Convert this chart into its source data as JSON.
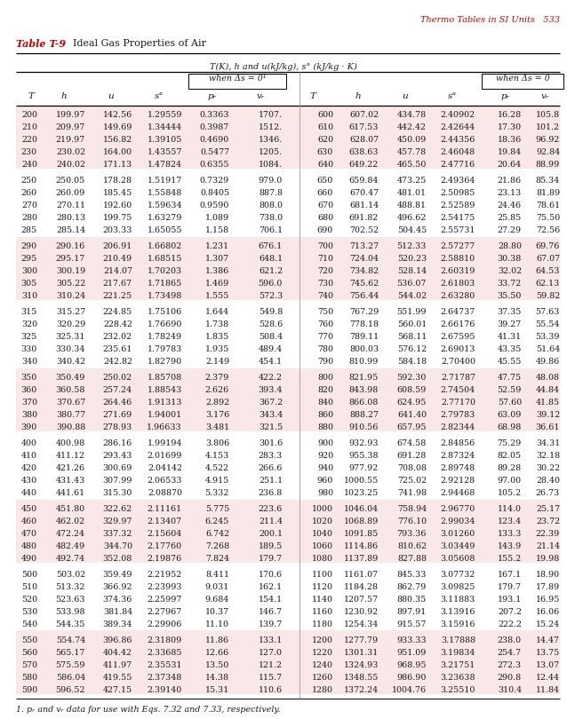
{
  "page_header": "Thermo Tables in SI Units   533",
  "table_label": "Table T-9",
  "table_title": "Ideal Gas Properties of Air",
  "subtitle1": "T(K), h and u(kJ/kg), s° (kJ/kg · K)",
  "when_ds_left": "when Δs = 0¹",
  "when_ds_right": "when Δs = 0",
  "footnote": "1. pᵣ and vᵣ data for use with Eqs. 7.32 and 7.33, respectively.",
  "data": [
    [
      200,
      199.97,
      142.56,
      1.29559,
      0.3363,
      1707,
      600,
      607.02,
      434.78,
      2.40902,
      16.28,
      105.8
    ],
    [
      210,
      209.97,
      149.69,
      1.34444,
      0.3987,
      1512,
      610,
      617.53,
      442.42,
      2.42644,
      17.3,
      101.2
    ],
    [
      220,
      219.97,
      156.82,
      1.39105,
      0.469,
      1346,
      620,
      628.07,
      450.09,
      2.44356,
      18.36,
      96.92
    ],
    [
      230,
      230.02,
      164.0,
      1.43557,
      0.5477,
      1205,
      630,
      638.63,
      457.78,
      2.46048,
      19.84,
      92.84
    ],
    [
      240,
      240.02,
      171.13,
      1.47824,
      0.6355,
      1084,
      640,
      649.22,
      465.5,
      2.47716,
      20.64,
      88.99
    ],
    [
      250,
      250.05,
      178.28,
      1.51917,
      0.7329,
      979,
      650,
      659.84,
      473.25,
      2.49364,
      21.86,
      85.34
    ],
    [
      260,
      260.09,
      185.45,
      1.55848,
      0.8405,
      887.8,
      660,
      670.47,
      481.01,
      2.50985,
      23.13,
      81.89
    ],
    [
      270,
      270.11,
      192.6,
      1.59634,
      0.959,
      808.0,
      670,
      681.14,
      488.81,
      2.52589,
      24.46,
      78.61
    ],
    [
      280,
      280.13,
      199.75,
      1.63279,
      1.0889,
      738.0,
      680,
      691.82,
      496.62,
      2.54175,
      25.85,
      75.5
    ],
    [
      285,
      285.14,
      203.33,
      1.65055,
      1.1584,
      706.1,
      690,
      702.52,
      504.45,
      2.55731,
      27.29,
      72.56
    ],
    [
      290,
      290.16,
      206.91,
      1.66802,
      1.2311,
      676.1,
      700,
      713.27,
      512.33,
      2.57277,
      28.8,
      69.76
    ],
    [
      295,
      295.17,
      210.49,
      1.68515,
      1.3068,
      648.1,
      710,
      724.04,
      520.23,
      2.5881,
      30.38,
      67.07
    ],
    [
      300,
      300.19,
      214.07,
      1.70203,
      1.386,
      621.2,
      720,
      734.82,
      528.14,
      2.60319,
      32.02,
      64.53
    ],
    [
      305,
      305.22,
      217.67,
      1.71865,
      1.4686,
      596.0,
      730,
      745.62,
      536.07,
      2.61803,
      33.72,
      62.13
    ],
    [
      310,
      310.24,
      221.25,
      1.73498,
      1.5546,
      572.3,
      740,
      756.44,
      544.02,
      2.6328,
      35.5,
      59.82
    ],
    [
      315,
      315.27,
      224.85,
      1.75106,
      1.6442,
      549.8,
      750,
      767.29,
      551.99,
      2.64737,
      37.35,
      57.63
    ],
    [
      320,
      320.29,
      228.42,
      1.7669,
      1.7375,
      528.6,
      760,
      778.18,
      560.01,
      2.66176,
      39.27,
      55.54
    ],
    [
      325,
      325.31,
      232.02,
      1.78249,
      1.8345,
      508.4,
      770,
      789.11,
      568.11,
      2.67595,
      41.31,
      53.39
    ],
    [
      330,
      330.34,
      235.61,
      1.79783,
      1.9352,
      489.4,
      780,
      800.03,
      576.12,
      2.69013,
      43.35,
      51.64
    ],
    [
      340,
      340.42,
      242.82,
      1.8279,
      2.149,
      454.1,
      790,
      810.99,
      584.18,
      2.704,
      45.55,
      49.86
    ],
    [
      350,
      350.49,
      250.02,
      1.85708,
      2.379,
      422.2,
      800,
      821.95,
      592.3,
      2.71787,
      47.75,
      48.08
    ],
    [
      360,
      360.58,
      257.24,
      1.88543,
      2.626,
      393.4,
      820,
      843.98,
      608.59,
      2.74504,
      52.59,
      44.84
    ],
    [
      370,
      370.67,
      264.46,
      1.91313,
      2.892,
      367.2,
      840,
      866.08,
      624.95,
      2.7717,
      57.6,
      41.85
    ],
    [
      380,
      380.77,
      271.69,
      1.94001,
      3.176,
      343.4,
      860,
      888.27,
      641.4,
      2.79783,
      63.09,
      39.12
    ],
    [
      390,
      390.88,
      278.93,
      1.96633,
      3.481,
      321.5,
      880,
      910.56,
      657.95,
      2.82344,
      68.98,
      36.61
    ],
    [
      400,
      400.98,
      286.16,
      1.99194,
      3.806,
      301.6,
      900,
      932.93,
      674.58,
      2.84856,
      75.29,
      34.31
    ],
    [
      410,
      411.12,
      293.43,
      2.01699,
      4.153,
      283.3,
      920,
      955.38,
      691.28,
      2.87324,
      82.05,
      32.18
    ],
    [
      420,
      421.26,
      300.69,
      2.04142,
      4.522,
      266.6,
      940,
      977.92,
      708.08,
      2.89748,
      89.28,
      30.22
    ],
    [
      430,
      431.43,
      307.99,
      2.06533,
      4.915,
      251.1,
      960,
      1000.55,
      725.02,
      2.92128,
      97.0,
      28.4
    ],
    [
      440,
      441.61,
      315.3,
      2.0887,
      5.332,
      236.8,
      980,
      1023.25,
      741.98,
      2.94468,
      105.2,
      26.73
    ],
    [
      450,
      451.8,
      322.62,
      2.11161,
      5.775,
      223.6,
      1000,
      1046.04,
      758.94,
      2.9677,
      114.0,
      25.17
    ],
    [
      460,
      462.02,
      329.97,
      2.13407,
      6.245,
      211.4,
      1020,
      1068.89,
      776.1,
      2.99034,
      123.4,
      23.72
    ],
    [
      470,
      472.24,
      337.32,
      2.15604,
      6.742,
      200.1,
      1040,
      1091.85,
      793.36,
      3.0126,
      133.3,
      22.39
    ],
    [
      480,
      482.49,
      344.7,
      2.1776,
      7.268,
      189.5,
      1060,
      1114.86,
      810.62,
      3.03449,
      143.9,
      21.14
    ],
    [
      490,
      492.74,
      352.08,
      2.19876,
      7.824,
      179.7,
      1080,
      1137.89,
      827.88,
      3.05608,
      155.2,
      19.98
    ],
    [
      500,
      503.02,
      359.49,
      2.21952,
      8.411,
      170.6,
      1100,
      1161.07,
      845.33,
      3.07732,
      167.1,
      18.896
    ],
    [
      510,
      513.32,
      366.92,
      2.23993,
      9.031,
      162.1,
      1120,
      1184.28,
      862.79,
      3.09825,
      179.7,
      17.886
    ],
    [
      520,
      523.63,
      374.36,
      2.25997,
      9.684,
      154.1,
      1140,
      1207.57,
      880.35,
      3.11883,
      193.1,
      16.946
    ],
    [
      530,
      533.98,
      381.84,
      2.27967,
      10.37,
      146.7,
      1160,
      1230.92,
      897.91,
      3.13916,
      207.2,
      16.064
    ],
    [
      540,
      544.35,
      389.34,
      2.29906,
      11.1,
      139.7,
      1180,
      1254.34,
      915.57,
      3.15916,
      222.2,
      15.241
    ],
    [
      550,
      554.74,
      396.86,
      2.31809,
      11.86,
      133.1,
      1200,
      1277.79,
      933.33,
      3.17888,
      238.0,
      14.47
    ],
    [
      560,
      565.17,
      404.42,
      2.33685,
      12.66,
      127.0,
      1220,
      1301.31,
      951.09,
      3.19834,
      254.7,
      13.747
    ],
    [
      570,
      575.59,
      411.97,
      2.35531,
      13.5,
      121.2,
      1240,
      1324.93,
      968.95,
      3.21751,
      272.3,
      13.069
    ],
    [
      580,
      586.04,
      419.55,
      2.37348,
      14.38,
      115.7,
      1260,
      1348.55,
      986.9,
      3.23638,
      290.8,
      12.435
    ],
    [
      590,
      596.52,
      427.15,
      2.3914,
      15.31,
      110.6,
      1280,
      1372.24,
      1004.76,
      3.2551,
      310.4,
      11.835
    ]
  ],
  "background_color": "#ffffff",
  "shading_color": "#fae8e8",
  "header_color": "#cc0000",
  "text_color": "#1a1a1a",
  "line_color": "#555555"
}
